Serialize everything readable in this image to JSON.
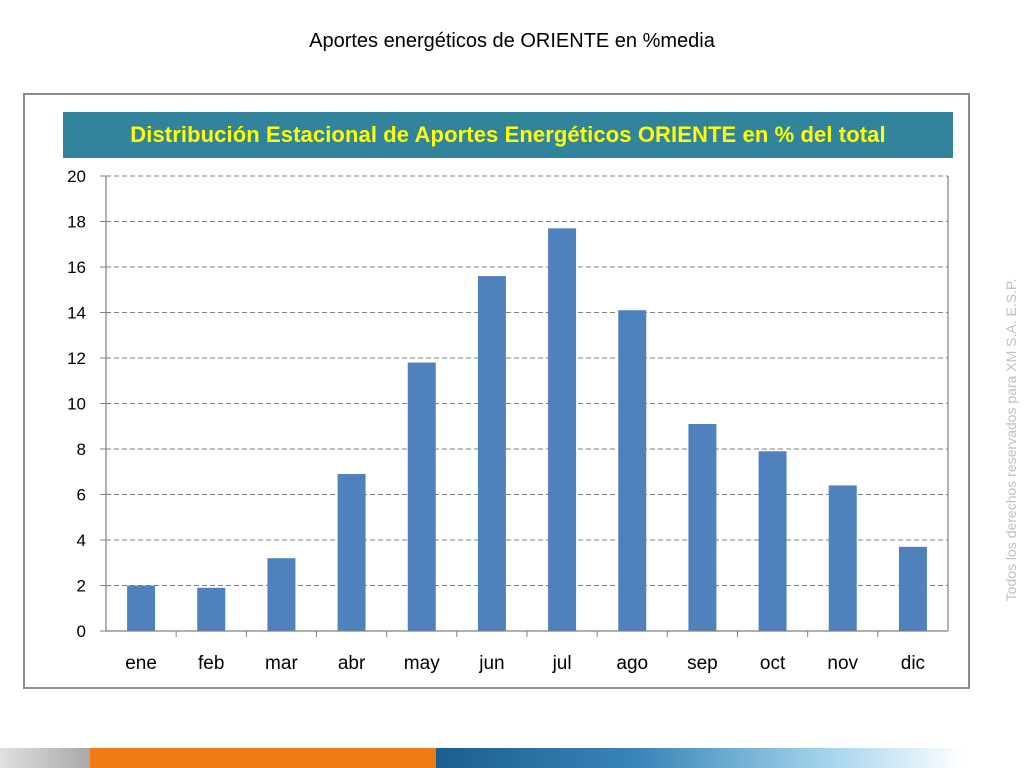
{
  "slide": {
    "title": "Aportes energéticos de ORIENTE en %media",
    "watermark": "Todos los derechos reservados para XM S.A. E.S.P."
  },
  "colors": {
    "banner_bg": "#31849b",
    "banner_text": "#ffff00",
    "bar": "#4f81bd",
    "grid": "#808080",
    "footer_gray": "#a8a8a8",
    "footer_orange": "#f07a14",
    "footer_blue": "#1a5f8e"
  },
  "chart_data": {
    "type": "bar",
    "title": "Distribución Estacional de Aportes Energéticos ORIENTE en % del total",
    "categories": [
      "ene",
      "feb",
      "mar",
      "abr",
      "may",
      "jun",
      "jul",
      "ago",
      "sep",
      "oct",
      "nov",
      "dic"
    ],
    "values": [
      2.0,
      1.9,
      3.2,
      6.9,
      11.8,
      15.6,
      17.7,
      14.1,
      9.1,
      7.9,
      6.4,
      3.7
    ],
    "ylim": [
      0,
      20
    ],
    "yticks": [
      0,
      2,
      4,
      6,
      8,
      10,
      12,
      14,
      16,
      18,
      20
    ],
    "grid": true,
    "grid_style": "dashed",
    "legend": "none"
  }
}
